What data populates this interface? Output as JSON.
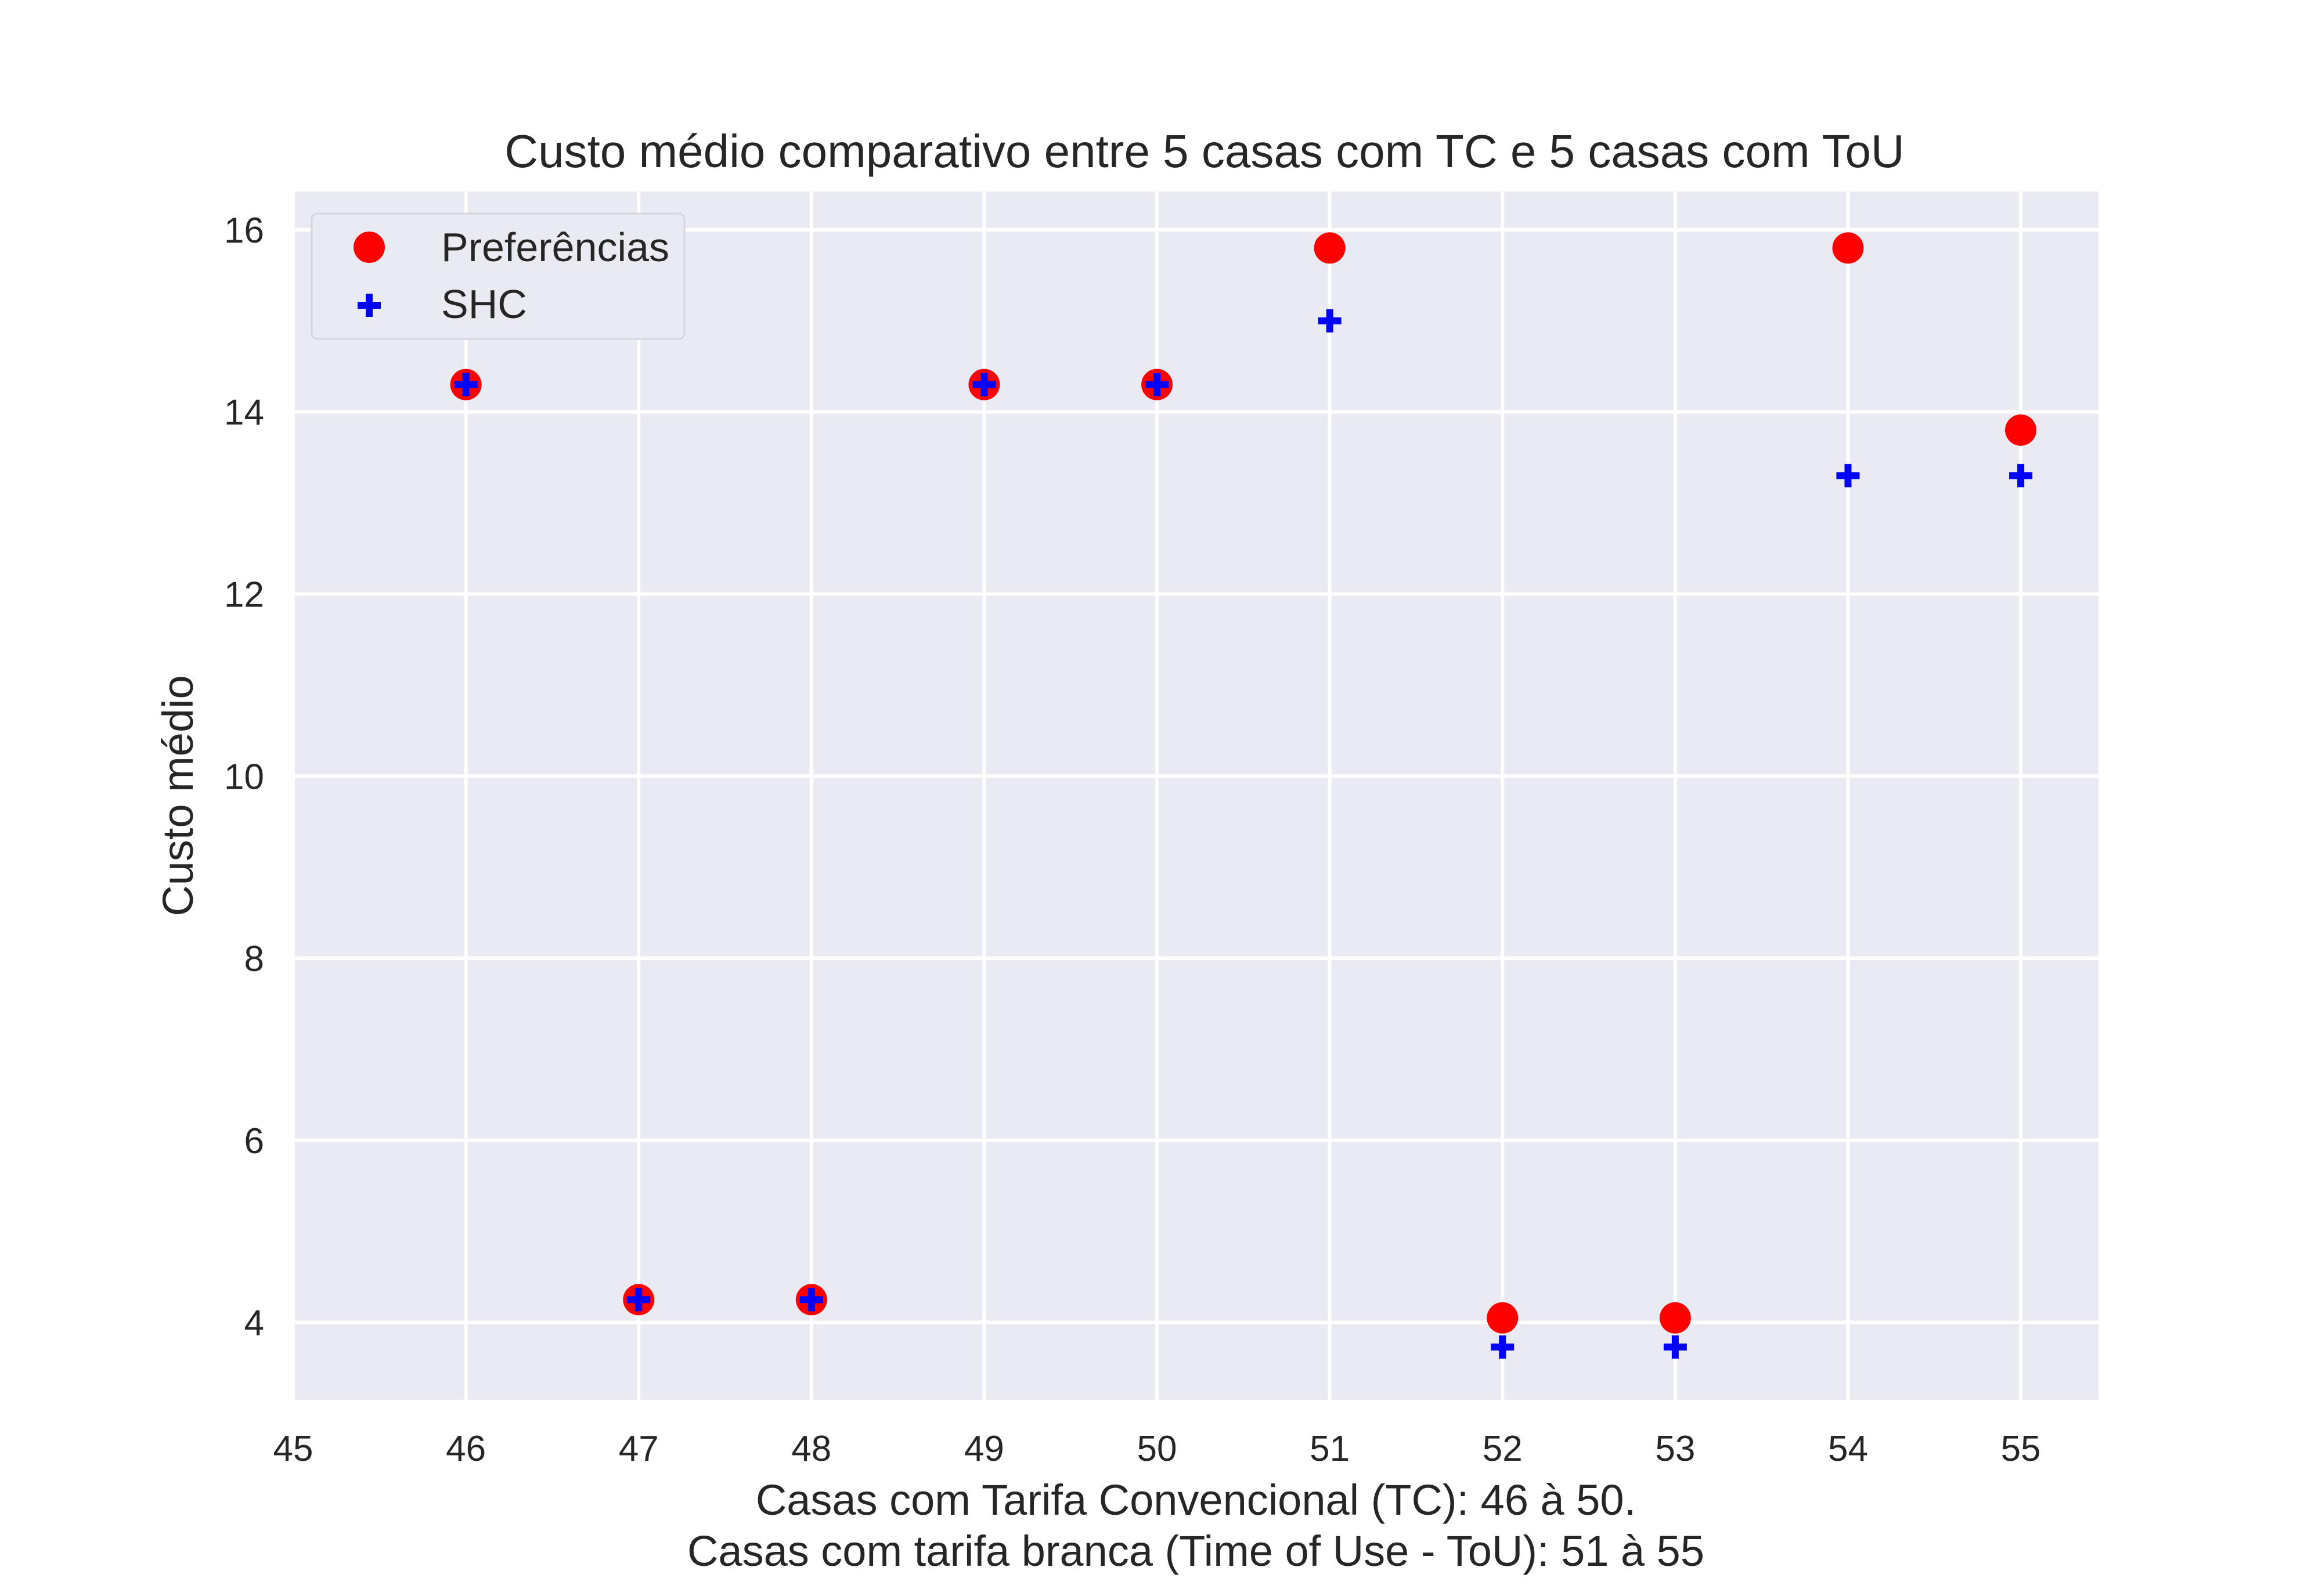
{
  "chart_data": {
    "type": "scatter",
    "title": "Custo médio comparativo entre 5 casas com TC e 5 casas com ToU",
    "xlabel_lines": [
      "Casas com Tarifa Convencional (TC): 46 à 50.",
      "Casas com tarifa branca (Time of Use - ToU): 51 à 55"
    ],
    "ylabel": "Custo médio",
    "xlim": [
      45,
      55.45
    ],
    "ylim": [
      3.15,
      16.42
    ],
    "xticks": [
      45,
      46,
      47,
      48,
      49,
      50,
      51,
      52,
      53,
      54,
      55
    ],
    "yticks": [
      4,
      6,
      8,
      10,
      12,
      14,
      16
    ],
    "grid": true,
    "legend_position": "top-left",
    "series": [
      {
        "name": "Preferências",
        "marker": "circle",
        "color": "#ff0000",
        "x": [
          46,
          47,
          48,
          49,
          50,
          51,
          52,
          53,
          54,
          55
        ],
        "y": [
          14.3,
          4.25,
          4.25,
          14.3,
          14.3,
          15.8,
          4.05,
          4.05,
          15.8,
          13.8
        ]
      },
      {
        "name": "SHC",
        "marker": "plus",
        "color": "#0000ff",
        "x": [
          46,
          47,
          48,
          49,
          50,
          51,
          52,
          53,
          54,
          55
        ],
        "y": [
          14.3,
          4.25,
          4.25,
          14.3,
          14.3,
          15.0,
          3.73,
          3.73,
          13.3,
          13.3
        ]
      }
    ]
  },
  "colors": {
    "plot_background": "#eaeaf2",
    "grid": "#ffffff",
    "text": "#262626"
  }
}
